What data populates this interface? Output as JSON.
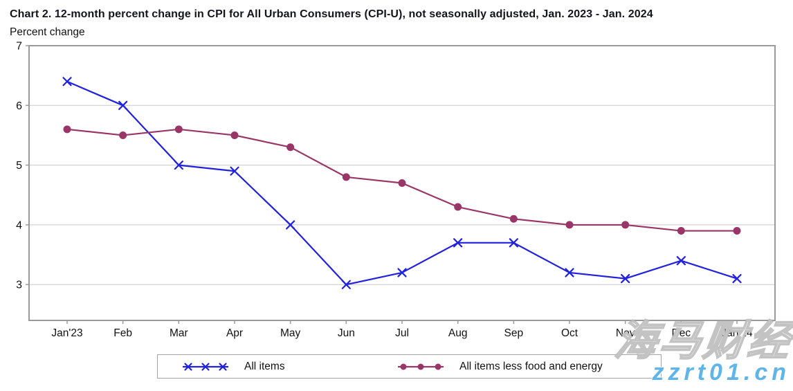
{
  "chart_data": {
    "type": "line",
    "title": "Chart 2. 12-month percent change in CPI for All Urban Consumers (CPI-U), not seasonally adjusted, Jan. 2023 - Jan. 2024",
    "ylabel": "Percent change",
    "xlabel": "",
    "categories": [
      "Jan'23",
      "Feb",
      "Mar",
      "Apr",
      "May",
      "Jun",
      "Jul",
      "Aug",
      "Sep",
      "Oct",
      "Nov",
      "Dec",
      "Jan'24"
    ],
    "series": [
      {
        "name": "All items",
        "color": "#2121e0",
        "marker": "x",
        "values": [
          6.4,
          6.0,
          5.0,
          4.9,
          4.0,
          3.0,
          3.2,
          3.7,
          3.7,
          3.2,
          3.1,
          3.4,
          3.1
        ]
      },
      {
        "name": "All items less food and energy",
        "color": "#9a3567",
        "marker": "circle",
        "values": [
          5.6,
          5.5,
          5.6,
          5.5,
          5.3,
          4.8,
          4.7,
          4.3,
          4.1,
          4.0,
          4.0,
          3.9,
          3.9
        ]
      }
    ],
    "y_ticks": [
      7,
      6,
      5,
      4,
      3
    ],
    "ylim": [
      2.4,
      7
    ],
    "grid": "horizontal",
    "legend_position": "bottom",
    "axis_color": "#9a9a9a",
    "gridline_color": "#c9c9c9",
    "text_color": "#111111"
  },
  "watermark": {
    "line1": "海马财经",
    "line2": "zzrt01.cn",
    "line2_color": "#5fb5e9"
  }
}
